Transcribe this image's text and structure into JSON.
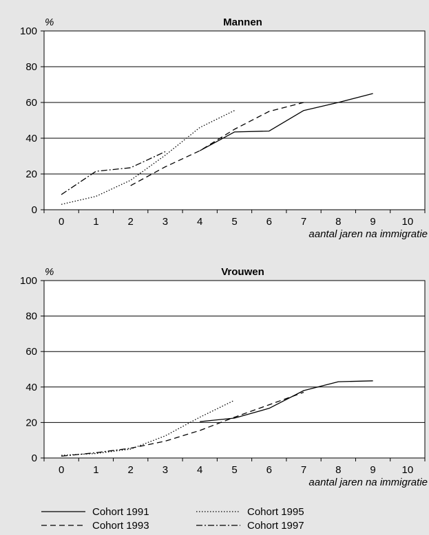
{
  "chart_data": [
    {
      "type": "line",
      "title": "Mannen",
      "ylabel": "%",
      "xlabel": "aantal jaren na immigratie",
      "xlim": [
        0,
        10
      ],
      "ylim": [
        0,
        100
      ],
      "x_ticks": [
        "0",
        "1",
        "2",
        "3",
        "4",
        "5",
        "6",
        "7",
        "8",
        "9",
        "10"
      ],
      "y_ticks": [
        "0",
        "20",
        "40",
        "60",
        "80",
        "100"
      ],
      "grid": true,
      "series": [
        {
          "name": "Cohort 1991",
          "style": "solid",
          "x": [
            4,
            5,
            6,
            7,
            8,
            9
          ],
          "y": [
            33,
            43.5,
            44,
            55.5,
            60,
            65
          ]
        },
        {
          "name": "Cohort 1993",
          "style": "dashed",
          "x": [
            2,
            3,
            4,
            5,
            6,
            7
          ],
          "y": [
            13.5,
            24,
            33,
            45,
            55,
            60
          ]
        },
        {
          "name": "Cohort 1995",
          "style": "dotted",
          "x": [
            0,
            1,
            2,
            3,
            4,
            5
          ],
          "y": [
            3,
            7.5,
            16.5,
            30.5,
            46,
            55.5
          ]
        },
        {
          "name": "Cohort 1997",
          "style": "dashdot",
          "x": [
            0,
            1,
            2,
            3
          ],
          "y": [
            8.5,
            21.5,
            23.5,
            32.5
          ]
        }
      ]
    },
    {
      "type": "line",
      "title": "Vrouwen",
      "ylabel": "%",
      "xlabel": "aantal jaren na immigratie",
      "xlim": [
        0,
        10
      ],
      "ylim": [
        0,
        100
      ],
      "x_ticks": [
        "0",
        "1",
        "2",
        "3",
        "4",
        "5",
        "6",
        "7",
        "8",
        "9",
        "10"
      ],
      "y_ticks": [
        "0",
        "20",
        "40",
        "60",
        "80",
        "100"
      ],
      "grid": true,
      "series": [
        {
          "name": "Cohort 1991",
          "style": "solid",
          "x": [
            4,
            5,
            6,
            7,
            8,
            9
          ],
          "y": [
            20.5,
            22.5,
            28,
            38,
            43,
            43.5
          ]
        },
        {
          "name": "Cohort 1993",
          "style": "dashed",
          "x": [
            2,
            3,
            4,
            5,
            6,
            7
          ],
          "y": [
            5.5,
            9.5,
            15.5,
            23,
            30,
            37
          ]
        },
        {
          "name": "Cohort 1995",
          "style": "dotted",
          "x": [
            0,
            1,
            2,
            3,
            4,
            5
          ],
          "y": [
            1.5,
            2.5,
            5,
            12.5,
            23,
            32.5
          ]
        },
        {
          "name": "Cohort 1997",
          "style": "dashdot",
          "x": [
            0,
            1,
            2
          ],
          "y": [
            1,
            3,
            5.5
          ]
        }
      ]
    }
  ],
  "legend": {
    "items": [
      {
        "label": "Cohort 1991",
        "style": "solid"
      },
      {
        "label": "Cohort 1995",
        "style": "dotted"
      },
      {
        "label": "Cohort 1993",
        "style": "dashed"
      },
      {
        "label": "Cohort 1997",
        "style": "dashdot"
      }
    ]
  }
}
